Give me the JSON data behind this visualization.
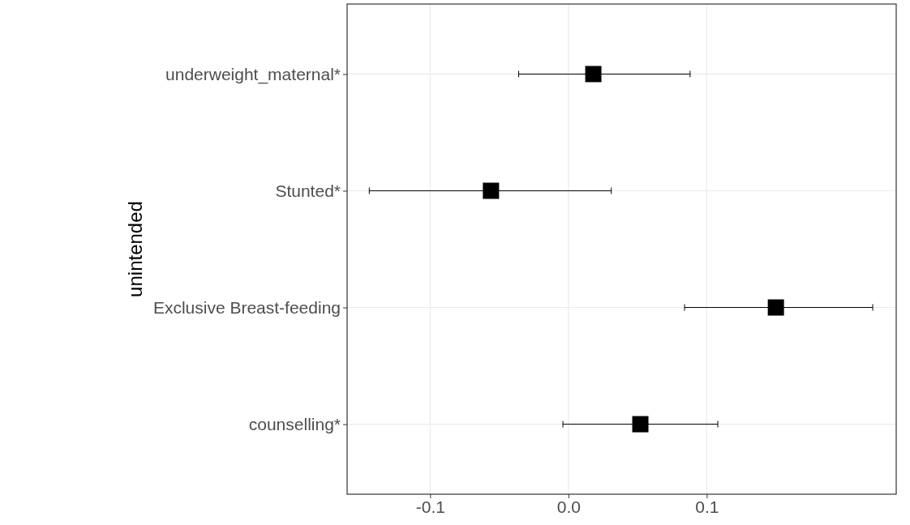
{
  "chart_data": {
    "type": "scatter",
    "orientation": "horizontal",
    "ylabel": "unintended",
    "categories": [
      "underweight_maternal*",
      "Stunted*",
      "Exclusive Breast-feeding",
      "counselling*"
    ],
    "series": [
      {
        "color": "#000000",
        "values": [
          0.018,
          -0.056,
          0.15,
          0.052
        ],
        "errors": [
          [
            -0.036,
            0.088
          ],
          [
            -0.144,
            0.031
          ],
          [
            0.084,
            0.22
          ],
          [
            -0.004,
            0.108
          ]
        ]
      }
    ],
    "xlim": [
      -0.16,
      0.237
    ],
    "xticks": [
      {
        "value": -0.1,
        "label": "-0.1"
      },
      {
        "value": 0,
        "label": "0.0"
      },
      {
        "value": 0.1,
        "label": "0.1"
      }
    ],
    "grid": true,
    "marker": "square"
  }
}
